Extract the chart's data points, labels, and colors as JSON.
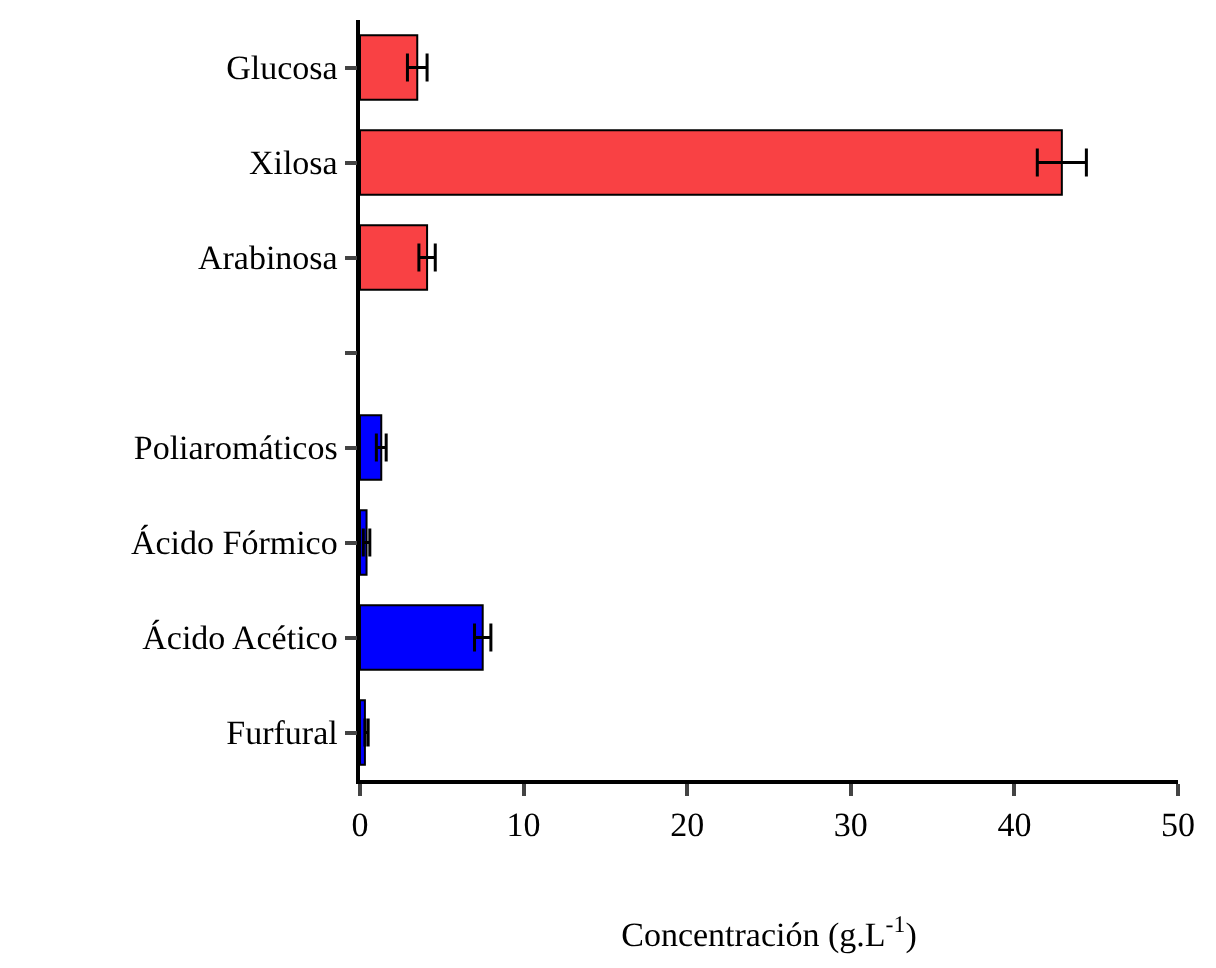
{
  "chart_data": {
    "type": "bar",
    "orientation": "horizontal",
    "xlabel": "Concentración (g.L$^{-1}$)",
    "categories": [
      "Glucosa",
      "Xilosa",
      "Arabinosa",
      null,
      "Poliaromáticos",
      "Ácido Fórmico",
      "Ácido Acético",
      "Furfural"
    ],
    "values": [
      3.5,
      42.9,
      4.1,
      null,
      1.3,
      0.4,
      7.5,
      0.3
    ],
    "errors": [
      0.6,
      1.5,
      0.5,
      null,
      0.3,
      0.2,
      0.5,
      [
        0.3,
        0.5
      ]
    ],
    "colors": [
      "#f94144",
      "#f94144",
      "#f94144",
      null,
      "#0000ff",
      "#0000ff",
      "#0000ff",
      "#0000ff"
    ],
    "xlim": [
      0,
      50
    ],
    "xticks": [
      0,
      10,
      20,
      30,
      40,
      50
    ],
    "grid": false,
    "legend": false
  }
}
